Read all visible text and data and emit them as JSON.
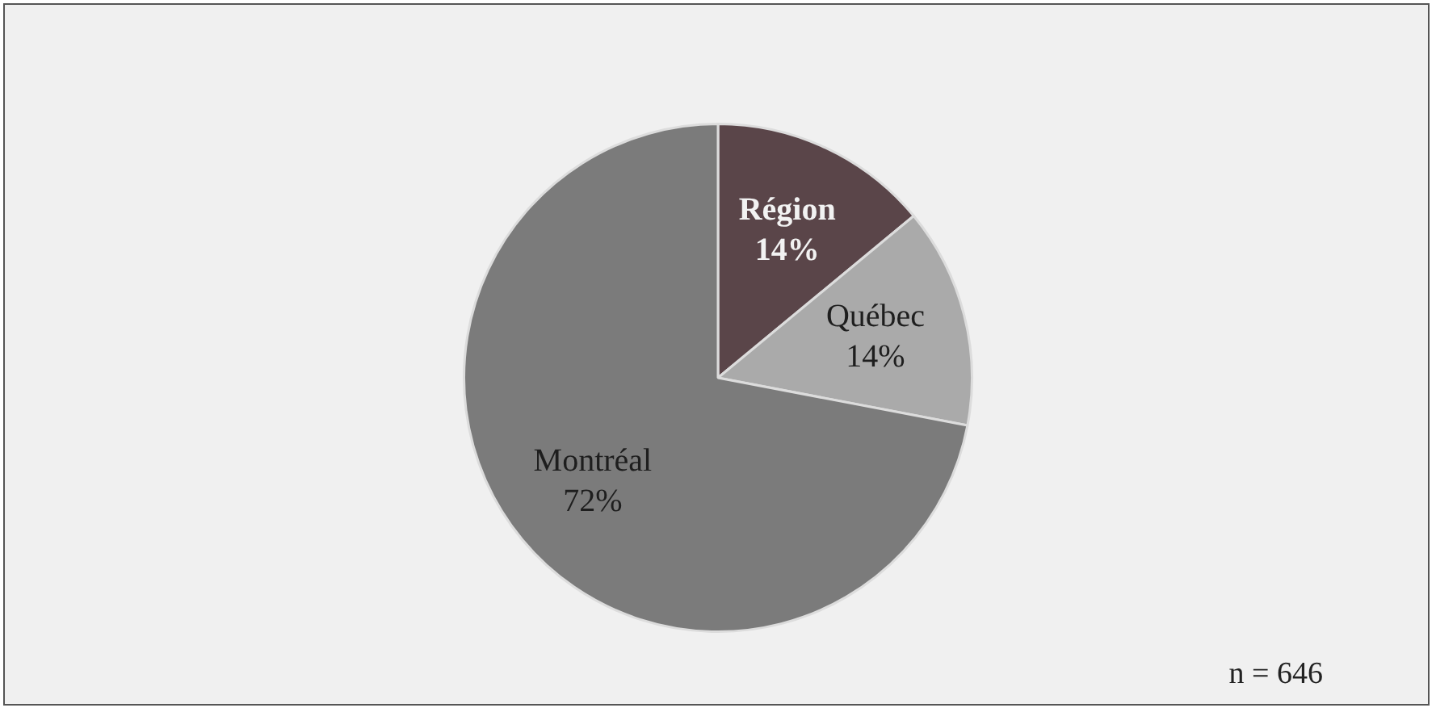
{
  "chart_data": {
    "type": "pie",
    "categories": [
      "Région",
      "Québec",
      "Montréal"
    ],
    "values": [
      14,
      14,
      72
    ],
    "colors": [
      "#5a4549",
      "#aaaaaa",
      "#7b7b7b"
    ],
    "value_labels": [
      "14%",
      "14%",
      "72%"
    ],
    "annotations": [
      "n = 646"
    ],
    "legend": false
  }
}
